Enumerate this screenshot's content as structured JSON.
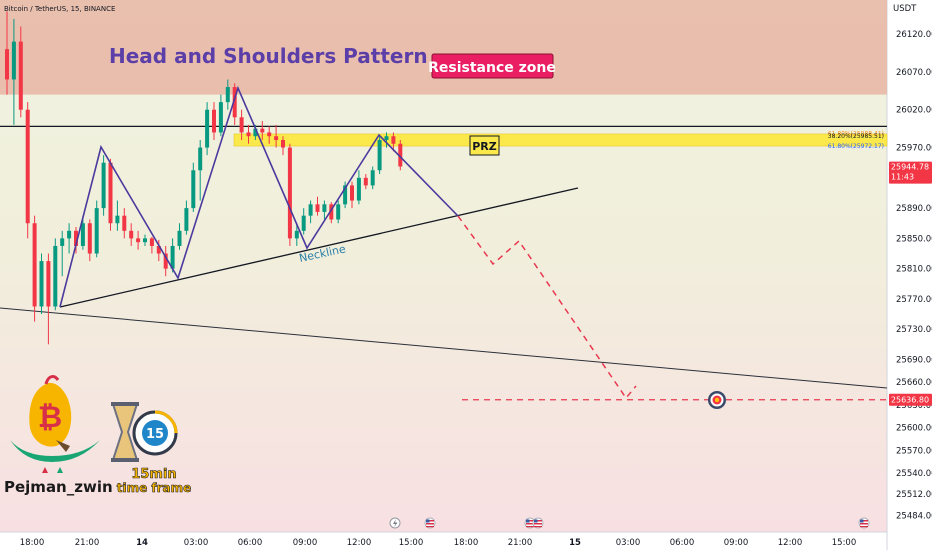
{
  "header": {
    "symbol_line": "Bitcoin / TetherUS, 15, BINANCE",
    "currency": "USDT"
  },
  "annotations": {
    "title": "Head and Shoulders Pattern",
    "resistance_label": "Resistance zone",
    "prz_label": "PRZ",
    "neckline_label": "Neckline",
    "fib_levels": [
      {
        "label": "61.80%(25988.41)",
        "price": 25988.41,
        "color": "#f7931a"
      },
      {
        "label": "38.20%(25985.51)",
        "price": 25985.51,
        "color": "#131722"
      },
      {
        "label": "61.80%(25972.17)",
        "price": 25972.17,
        "color": "#2962ff"
      }
    ]
  },
  "branding": {
    "author": "Pejman_zwin",
    "timeframe_line1": "15min",
    "timeframe_line2": "time frame",
    "timer_number": "15",
    "brand_colors": {
      "gold": "#f7b500",
      "green": "#1aa574",
      "red": "#d9304a",
      "blue": "#1f87c9"
    }
  },
  "price_badges": {
    "current_price": "25944.78",
    "countdown": "11:43",
    "current_price_value": 25944.78,
    "current_color": "#f23645",
    "target_price": "25636.80",
    "target_price_value": 25636.8,
    "target_color": "#f23645"
  },
  "colors": {
    "up": "#089981",
    "down": "#f23645",
    "pattern_line": "#4b3a9e",
    "trend_line": "#131722",
    "resistance_zone": "#e8b5a5",
    "prz_zone": "#fbe84a",
    "projection": "#e8384f",
    "neckline_text": "#2a7fa8",
    "resistance_label_bg": "#e91e63"
  },
  "chart_data": {
    "type": "candlestick",
    "title": "Head and Shoulders Pattern",
    "ylim": [
      25462,
      26165
    ],
    "y_ticks": [
      26120.0,
      26070.0,
      26020.0,
      25970.0,
      25930.0,
      25890.0,
      25850.0,
      25810.0,
      25770.0,
      25730.0,
      25690.0,
      25660.0,
      25630.0,
      25600.0,
      25570.0,
      25540.0,
      25512.0,
      25484.0
    ],
    "x_ticks": [
      "18:00",
      "21:00",
      "14",
      "03:00",
      "06:00",
      "09:00",
      "12:00",
      "15:00",
      "18:00",
      "21:00",
      "15",
      "03:00",
      "06:00",
      "09:00",
      "12:00",
      "15:00"
    ],
    "zones": [
      {
        "name": "Resistance zone",
        "from": 26040,
        "to": 26165
      },
      {
        "name": "PRZ",
        "from": 25972,
        "to": 25988
      }
    ],
    "horizontal_line": 25998,
    "target": 25636.8,
    "candles": [
      {
        "o": 26100,
        "h": 26150,
        "l": 26040,
        "c": 26060
      },
      {
        "o": 26060,
        "h": 26140,
        "l": 26000,
        "c": 26110
      },
      {
        "o": 26110,
        "h": 26130,
        "l": 26010,
        "c": 26020
      },
      {
        "o": 26020,
        "h": 26030,
        "l": 25850,
        "c": 25870
      },
      {
        "o": 25870,
        "h": 25880,
        "l": 25740,
        "c": 25760
      },
      {
        "o": 25760,
        "h": 25830,
        "l": 25750,
        "c": 25820
      },
      {
        "o": 25820,
        "h": 25830,
        "l": 25710,
        "c": 25760
      },
      {
        "o": 25760,
        "h": 25850,
        "l": 25755,
        "c": 25840
      },
      {
        "o": 25840,
        "h": 25860,
        "l": 25800,
        "c": 25850
      },
      {
        "o": 25850,
        "h": 25870,
        "l": 25830,
        "c": 25860
      },
      {
        "o": 25860,
        "h": 25865,
        "l": 25830,
        "c": 25840
      },
      {
        "o": 25840,
        "h": 25880,
        "l": 25835,
        "c": 25870
      },
      {
        "o": 25870,
        "h": 25875,
        "l": 25820,
        "c": 25830
      },
      {
        "o": 25830,
        "h": 25900,
        "l": 25825,
        "c": 25890
      },
      {
        "o": 25890,
        "h": 25960,
        "l": 25880,
        "c": 25950
      },
      {
        "o": 25950,
        "h": 25955,
        "l": 25860,
        "c": 25870
      },
      {
        "o": 25870,
        "h": 25900,
        "l": 25860,
        "c": 25880
      },
      {
        "o": 25880,
        "h": 25890,
        "l": 25850,
        "c": 25860
      },
      {
        "o": 25860,
        "h": 25870,
        "l": 25840,
        "c": 25850
      },
      {
        "o": 25850,
        "h": 25860,
        "l": 25835,
        "c": 25845
      },
      {
        "o": 25845,
        "h": 25855,
        "l": 25840,
        "c": 25850
      },
      {
        "o": 25850,
        "h": 25852,
        "l": 25830,
        "c": 25840
      },
      {
        "o": 25840,
        "h": 25848,
        "l": 25820,
        "c": 25830
      },
      {
        "o": 25830,
        "h": 25840,
        "l": 25800,
        "c": 25810
      },
      {
        "o": 25810,
        "h": 25850,
        "l": 25805,
        "c": 25840
      },
      {
        "o": 25840,
        "h": 25870,
        "l": 25835,
        "c": 25860
      },
      {
        "o": 25860,
        "h": 25900,
        "l": 25855,
        "c": 25890
      },
      {
        "o": 25890,
        "h": 25950,
        "l": 25885,
        "c": 25940
      },
      {
        "o": 25940,
        "h": 25980,
        "l": 25900,
        "c": 25970
      },
      {
        "o": 25970,
        "h": 26030,
        "l": 25960,
        "c": 26020
      },
      {
        "o": 26020,
        "h": 26030,
        "l": 25980,
        "c": 25990
      },
      {
        "o": 25990,
        "h": 26040,
        "l": 25985,
        "c": 26030
      },
      {
        "o": 26030,
        "h": 26060,
        "l": 26020,
        "c": 26050
      },
      {
        "o": 26050,
        "h": 26055,
        "l": 26000,
        "c": 26010
      },
      {
        "o": 26010,
        "h": 26020,
        "l": 25980,
        "c": 25990
      },
      {
        "o": 25990,
        "h": 26000,
        "l": 25975,
        "c": 25985
      },
      {
        "o": 25985,
        "h": 26000,
        "l": 25980,
        "c": 25995
      },
      {
        "o": 25995,
        "h": 26005,
        "l": 25980,
        "c": 25990
      },
      {
        "o": 25990,
        "h": 25998,
        "l": 25975,
        "c": 25985
      },
      {
        "o": 25985,
        "h": 26000,
        "l": 25970,
        "c": 25980
      },
      {
        "o": 25980,
        "h": 25985,
        "l": 25960,
        "c": 25970
      },
      {
        "o": 25970,
        "h": 25975,
        "l": 25840,
        "c": 25850
      },
      {
        "o": 25850,
        "h": 25870,
        "l": 25840,
        "c": 25860
      },
      {
        "o": 25860,
        "h": 25890,
        "l": 25855,
        "c": 25880
      },
      {
        "o": 25880,
        "h": 25900,
        "l": 25870,
        "c": 25895
      },
      {
        "o": 25895,
        "h": 25905,
        "l": 25880,
        "c": 25885
      },
      {
        "o": 25885,
        "h": 25900,
        "l": 25875,
        "c": 25895
      },
      {
        "o": 25895,
        "h": 25898,
        "l": 25870,
        "c": 25875
      },
      {
        "o": 25875,
        "h": 25900,
        "l": 25870,
        "c": 25895
      },
      {
        "o": 25895,
        "h": 25925,
        "l": 25890,
        "c": 25920
      },
      {
        "o": 25920,
        "h": 25925,
        "l": 25890,
        "c": 25900
      },
      {
        "o": 25900,
        "h": 25940,
        "l": 25895,
        "c": 25930
      },
      {
        "o": 25930,
        "h": 25935,
        "l": 25915,
        "c": 25920
      },
      {
        "o": 25920,
        "h": 25945,
        "l": 25915,
        "c": 25940
      },
      {
        "o": 25940,
        "h": 25985,
        "l": 25935,
        "c": 25980
      },
      {
        "o": 25980,
        "h": 25990,
        "l": 25970,
        "c": 25985
      },
      {
        "o": 25985,
        "h": 25990,
        "l": 25965,
        "c": 25975
      },
      {
        "o": 25975,
        "h": 25980,
        "l": 25940,
        "c": 25945
      }
    ]
  }
}
